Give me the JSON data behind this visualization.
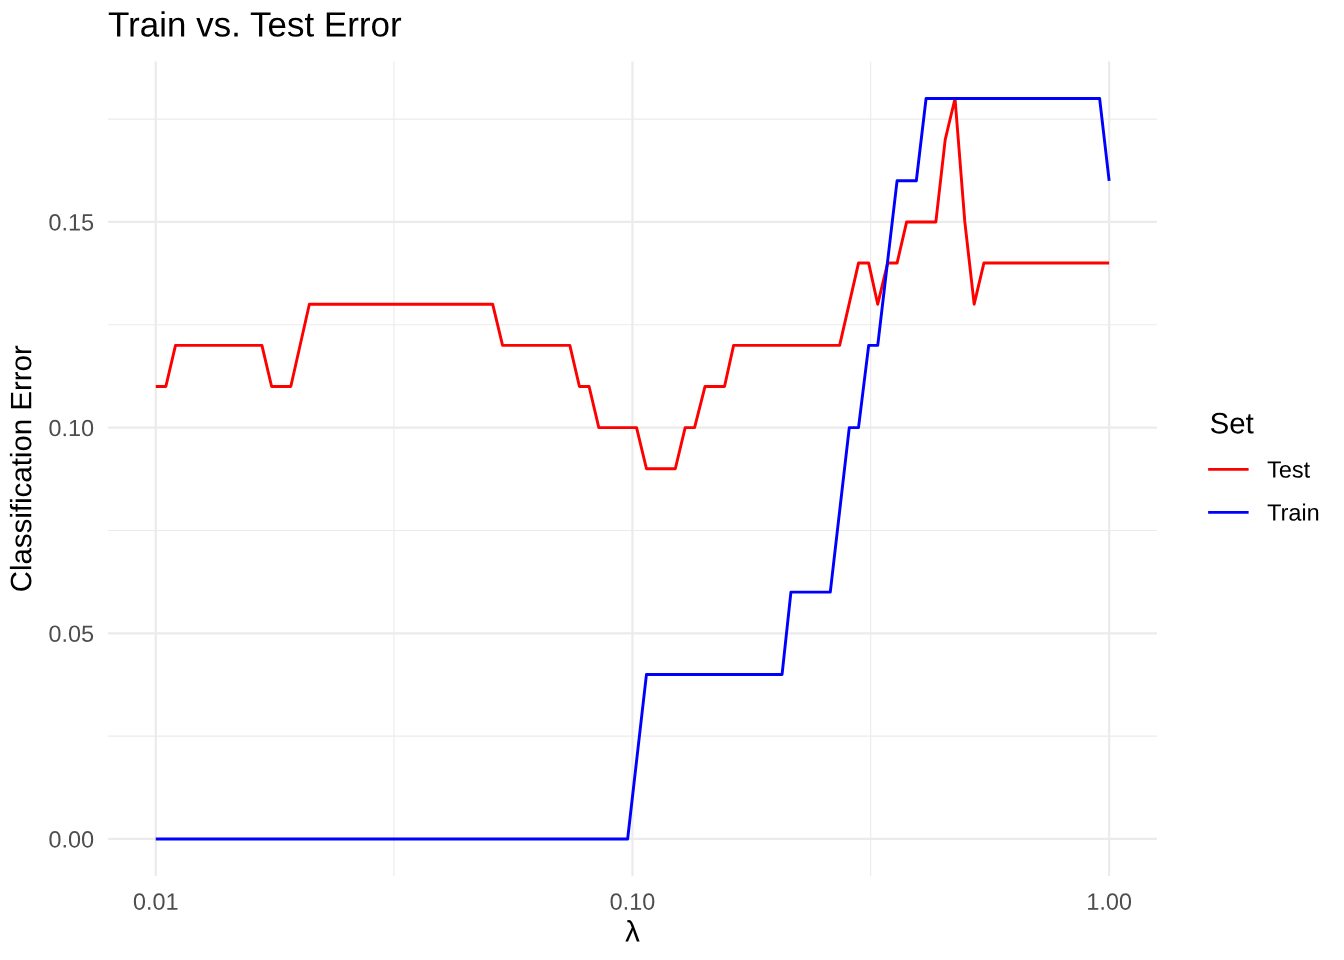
{
  "chart_data": {
    "type": "line",
    "title": "Train vs. Test Error",
    "xlabel": "λ",
    "ylabel": "Classification Error",
    "legend_title": "Set",
    "legend": "right",
    "grid": true,
    "log": "x",
    "xlim": [
      0.00794,
      1.26
    ],
    "xticks": [
      {
        "value": 0.01,
        "label": "0.01"
      },
      {
        "value": 0.0316,
        "label": null
      },
      {
        "value": 0.1,
        "label": "0.10"
      },
      {
        "value": 0.316,
        "label": null
      },
      {
        "value": 1,
        "label": "1.00"
      }
    ],
    "ylim": [
      -0.009,
      0.189
    ],
    "yticks": [
      {
        "value": 0,
        "label": "0.00"
      },
      {
        "value": 0.025,
        "label": null
      },
      {
        "value": 0.05,
        "label": "0.05"
      },
      {
        "value": 0.075,
        "label": null
      },
      {
        "value": 0.1,
        "label": "0.10"
      },
      {
        "value": 0.125,
        "label": null
      },
      {
        "value": 0.15,
        "label": "0.15"
      },
      {
        "value": 0.175,
        "label": null
      }
    ],
    "series": [
      {
        "name": "Test",
        "color": "#ff0000",
        "x": [
          0.01,
          0.0105,
          0.011,
          0.0167,
          0.0175,
          0.0192,
          0.021,
          0.0509,
          0.0534,
          0.0739,
          0.0774,
          0.0811,
          0.085,
          0.102,
          0.107,
          0.123,
          0.129,
          0.135,
          0.142,
          0.156,
          0.163,
          0.272,
          0.298,
          0.313,
          0.327,
          0.343,
          0.359,
          0.376,
          0.433,
          0.453,
          0.475,
          0.498,
          0.521,
          0.546,
          1.0
        ],
        "values": [
          0.11,
          0.11,
          0.12,
          0.12,
          0.11,
          0.11,
          0.13,
          0.13,
          0.12,
          0.12,
          0.11,
          0.11,
          0.1,
          0.1,
          0.09,
          0.09,
          0.1,
          0.1,
          0.11,
          0.11,
          0.12,
          0.12,
          0.14,
          0.14,
          0.13,
          0.14,
          0.14,
          0.15,
          0.15,
          0.17,
          0.18,
          0.15,
          0.13,
          0.14,
          0.14
        ]
      },
      {
        "name": "Train",
        "color": "#0000ff",
        "x": [
          0.01,
          0.0977,
          0.107,
          0.206,
          0.215,
          0.26,
          0.285,
          0.298,
          0.313,
          0.327,
          0.359,
          0.394,
          0.413,
          0.955,
          1.0
        ],
        "values": [
          0,
          0,
          0.04,
          0.04,
          0.06,
          0.06,
          0.1,
          0.1,
          0.12,
          0.12,
          0.16,
          0.16,
          0.18,
          0.18,
          0.16
        ]
      }
    ]
  }
}
